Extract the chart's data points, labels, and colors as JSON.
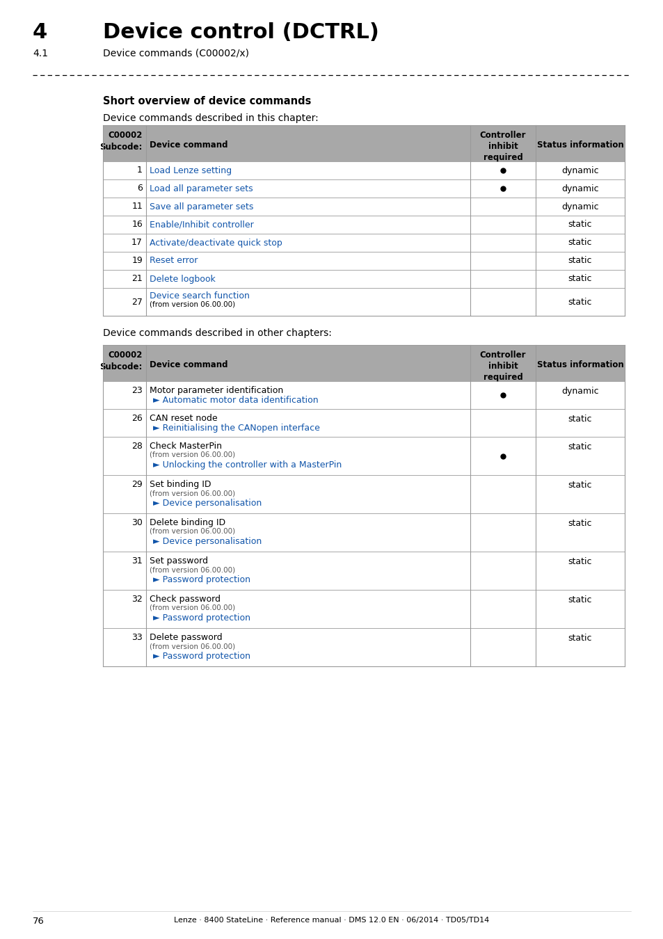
{
  "page_num": "76",
  "footer_text": "Lenze · 8400 StateLine · Reference manual · DMS 12.0 EN · 06/2014 · TD05/TD14",
  "chapter_num": "4",
  "chapter_title": "Device control (DCTRL)",
  "section_num": "4.1",
  "section_title": "Device commands (C00002/x)",
  "section_heading": "Short overview of device commands",
  "table1_intro": "Device commands described in this chapter:",
  "table2_intro": "Device commands described in other chapters:",
  "header_col1": "C00002\nSubcode:",
  "header_col2": "Device command",
  "header_col3": "Controller\ninhibit\nrequired",
  "header_col4": "Status information",
  "header_bg": "#a8a8a8",
  "link_color": "#1155aa",
  "sub_color": "#555555",
  "border_color": "#999999",
  "table1_rows": [
    {
      "code": "1",
      "command": "Load Lenze setting",
      "inhibit": true,
      "status": "dynamic",
      "sub": ""
    },
    {
      "code": "6",
      "command": "Load all parameter sets",
      "inhibit": true,
      "status": "dynamic",
      "sub": ""
    },
    {
      "code": "11",
      "command": "Save all parameter sets",
      "inhibit": false,
      "status": "dynamic",
      "sub": ""
    },
    {
      "code": "16",
      "command": "Enable/Inhibit controller",
      "inhibit": false,
      "status": "static",
      "sub": ""
    },
    {
      "code": "17",
      "command": "Activate/deactivate quick stop",
      "inhibit": false,
      "status": "static",
      "sub": ""
    },
    {
      "code": "19",
      "command": "Reset error",
      "inhibit": false,
      "status": "static",
      "sub": ""
    },
    {
      "code": "21",
      "command": "Delete logbook",
      "inhibit": false,
      "status": "static",
      "sub": ""
    },
    {
      "code": "27",
      "command": "Device search function",
      "inhibit": false,
      "status": "static",
      "sub": "(from version 06.00.00)"
    }
  ],
  "table2_rows": [
    {
      "code": "23",
      "command": "Motor parameter identification",
      "inhibit": true,
      "status": "dynamic",
      "sub": "",
      "links": [
        "► Automatic motor data identification"
      ]
    },
    {
      "code": "26",
      "command": "CAN reset node",
      "inhibit": false,
      "status": "static",
      "sub": "",
      "links": [
        "► Reinitialising the CANopen interface"
      ]
    },
    {
      "code": "28",
      "command": "Check MasterPin",
      "inhibit": true,
      "status": "static",
      "sub": "(from version 06.00.00)",
      "links": [
        "► Unlocking the controller with a MasterPin"
      ]
    },
    {
      "code": "29",
      "command": "Set binding ID",
      "inhibit": false,
      "status": "static",
      "sub": "(from version 06.00.00)",
      "links": [
        "► Device personalisation"
      ]
    },
    {
      "code": "30",
      "command": "Delete binding ID",
      "inhibit": false,
      "status": "static",
      "sub": "(from version 06.00.00)",
      "links": [
        "► Device personalisation"
      ]
    },
    {
      "code": "31",
      "command": "Set password",
      "inhibit": false,
      "status": "static",
      "sub": "(from version 06.00.00)",
      "links": [
        "► Password protection"
      ]
    },
    {
      "code": "32",
      "command": "Check password",
      "inhibit": false,
      "status": "static",
      "sub": "(from version 06.00.00)",
      "links": [
        "► Password protection"
      ]
    },
    {
      "code": "33",
      "command": "Delete password",
      "inhibit": false,
      "status": "static",
      "sub": "(from version 06.00.00)",
      "links": [
        "► Password protection"
      ]
    }
  ]
}
